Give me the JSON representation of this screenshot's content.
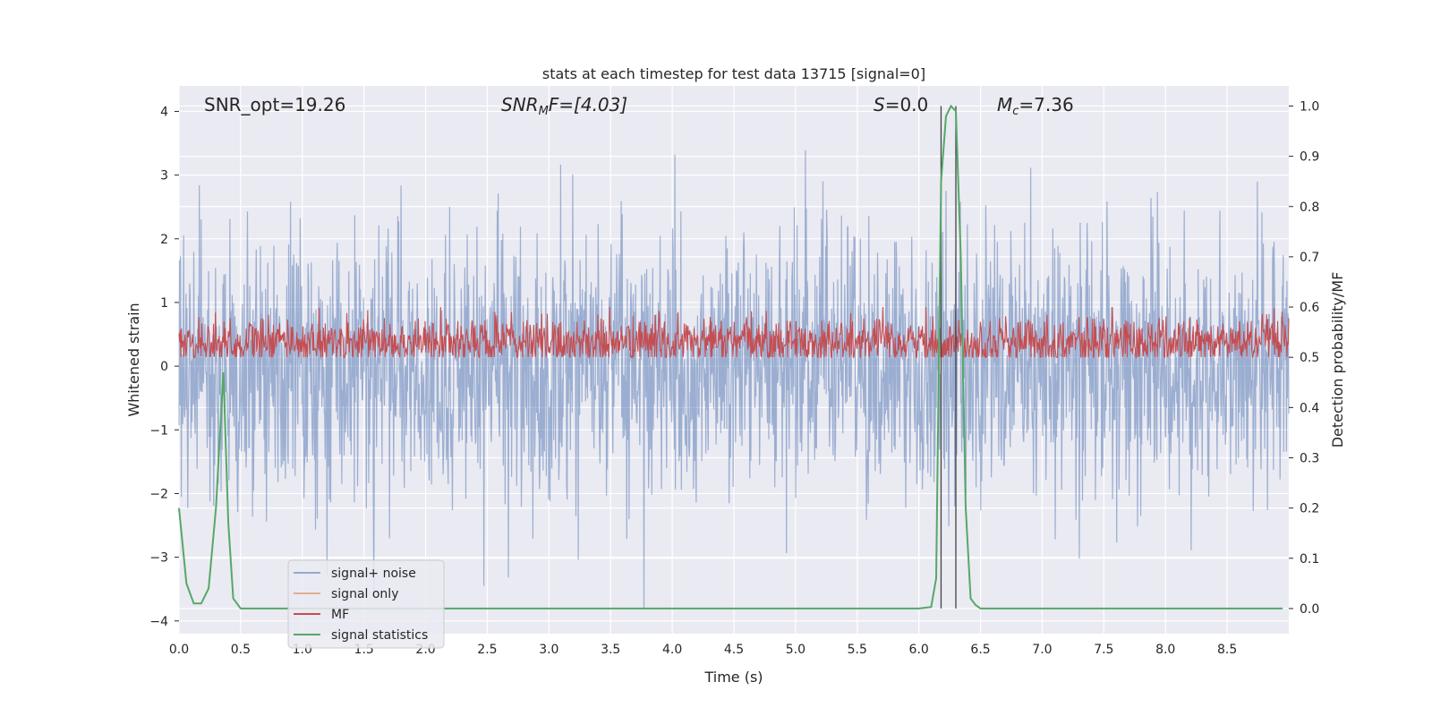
{
  "chart_data": {
    "type": "line",
    "title": "stats at each timestep for test data 13715 [signal=0]",
    "xlabel": "Time (s)",
    "ylabel_left": "Whitened strain",
    "ylabel_right": "Detection probability/MF",
    "xlim": [
      0,
      9
    ],
    "ylim_left": [
      -4.2,
      4.4
    ],
    "ylim_right": [
      -0.05,
      1.04
    ],
    "x_ticks": [
      0.0,
      0.5,
      1.0,
      1.5,
      2.0,
      2.5,
      3.0,
      3.5,
      4.0,
      4.5,
      5.0,
      5.5,
      6.0,
      6.5,
      7.0,
      7.5,
      8.0,
      8.5
    ],
    "x_tick_labels": [
      "0.0",
      "0.5",
      "1.0",
      "1.5",
      "2.0",
      "2.5",
      "3.0",
      "3.5",
      "4.0",
      "4.5",
      "5.0",
      "5.5",
      "6.0",
      "6.5",
      "7.0",
      "7.5",
      "8.0",
      "8.5"
    ],
    "y_left_ticks": [
      -4,
      -3,
      -2,
      -1,
      0,
      1,
      2,
      3,
      4
    ],
    "y_left_tick_labels": [
      "−4",
      "−3",
      "−2",
      "−1",
      "0",
      "1",
      "2",
      "3",
      "4"
    ],
    "y_right_ticks": [
      0.0,
      0.1,
      0.2,
      0.3,
      0.4,
      0.5,
      0.6,
      0.7,
      0.8,
      0.9,
      1.0
    ],
    "y_right_tick_labels": [
      "0.0",
      "0.1",
      "0.2",
      "0.3",
      "0.4",
      "0.5",
      "0.6",
      "0.7",
      "0.8",
      "0.9",
      "1.0"
    ],
    "grid": true,
    "annotations": {
      "snr_opt": "SNR_opt=19.26",
      "snr_mf_main": "SNR",
      "snr_mf_sub": "M",
      "snr_mf_rest": "F=[4.03]",
      "s_main": "S",
      "s_rest": "=0.0",
      "mc_main": "M",
      "mc_sub": "c",
      "mc_rest": "=7.36"
    },
    "legend": {
      "position": "lower-left",
      "entries": [
        "signal+ noise",
        "signal only",
        "MF",
        "signal statistics"
      ]
    },
    "series": [
      {
        "name": "signal+ noise",
        "axis": "left",
        "color": "#4c72b0",
        "kind": "noise",
        "x_range": [
          0,
          9
        ],
        "std": 1.0,
        "amplitude_range": [
          -3.8,
          3.6
        ]
      },
      {
        "name": "signal only",
        "axis": "left",
        "color": "#dd8452",
        "values": []
      },
      {
        "name": "MF",
        "axis": "right",
        "color": "#c44e52",
        "kind": "noise",
        "x_range": [
          0,
          9
        ],
        "mean": 0.53,
        "range": [
          0.5,
          0.6
        ]
      },
      {
        "name": "signal statistics",
        "axis": "right",
        "color": "#55a868",
        "x": [
          0.0,
          0.06,
          0.12,
          0.18,
          0.24,
          0.3,
          0.36,
          0.4,
          0.44,
          0.5,
          0.6,
          0.8,
          1.0,
          2.0,
          3.0,
          4.0,
          5.0,
          6.0,
          6.1,
          6.14,
          6.18,
          6.22,
          6.26,
          6.3,
          6.34,
          6.38,
          6.42,
          6.46,
          6.5,
          8.95
        ],
        "values": [
          0.2,
          0.05,
          0.01,
          0.01,
          0.04,
          0.2,
          0.47,
          0.17,
          0.02,
          0.0,
          0.0,
          0.0,
          0.0,
          0.0,
          0.0,
          0.0,
          0.0,
          0.0,
          0.003,
          0.06,
          0.85,
          0.98,
          1.0,
          0.99,
          0.7,
          0.2,
          0.02,
          0.007,
          0.0,
          0.0
        ]
      }
    ],
    "vertical_lines": [
      6.18,
      6.3
    ]
  }
}
